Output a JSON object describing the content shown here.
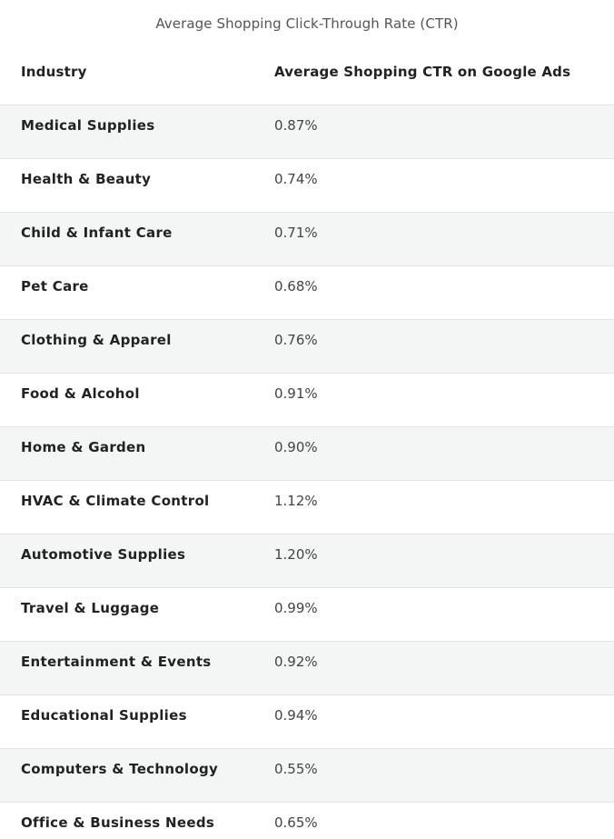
{
  "table": {
    "caption": "Average Shopping Click-Through Rate (CTR)",
    "headers": {
      "industry": "Industry",
      "ctr": "Average Shopping CTR on Google Ads"
    },
    "rows": [
      {
        "industry": "Medical Supplies",
        "ctr": "0.87%"
      },
      {
        "industry": "Health & Beauty",
        "ctr": "0.74%"
      },
      {
        "industry": "Child & Infant Care",
        "ctr": "0.71%"
      },
      {
        "industry": "Pet Care",
        "ctr": "0.68%"
      },
      {
        "industry": "Clothing & Apparel",
        "ctr": "0.76%"
      },
      {
        "industry": "Food & Alcohol",
        "ctr": "0.91%"
      },
      {
        "industry": "Home & Garden",
        "ctr": "0.90%"
      },
      {
        "industry": "HVAC & Climate Control",
        "ctr": "1.12%"
      },
      {
        "industry": "Automotive Supplies",
        "ctr": "1.20%"
      },
      {
        "industry": "Travel & Luggage",
        "ctr": "0.99%"
      },
      {
        "industry": "Entertainment & Events",
        "ctr": "0.92%"
      },
      {
        "industry": "Educational Supplies",
        "ctr": "0.94%"
      },
      {
        "industry": "Computers & Technology",
        "ctr": "0.55%"
      },
      {
        "industry": "Office & Business Needs",
        "ctr": "0.65%"
      }
    ]
  },
  "colors": {
    "stripe": "#f4f6f5",
    "border": "#e4e4e4",
    "text": "#222222",
    "caption": "#555555"
  }
}
